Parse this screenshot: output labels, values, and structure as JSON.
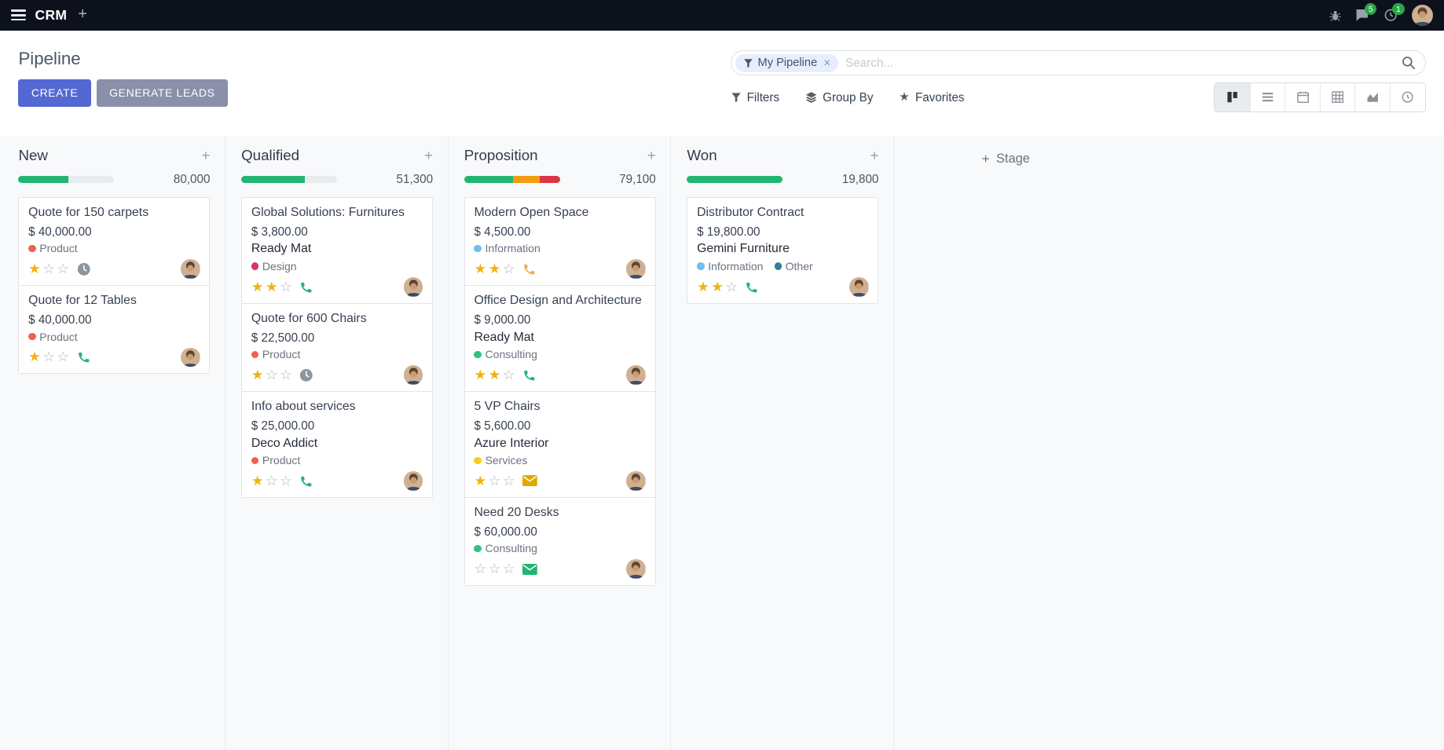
{
  "navbar": {
    "app_name": "CRM",
    "messages_badge": "5",
    "activities_badge": "1"
  },
  "control_panel": {
    "title": "Pipeline",
    "buttons": {
      "create": "CREATE",
      "generate_leads": "GENERATE LEADS"
    },
    "search": {
      "facet_label": "My Pipeline",
      "facet_remove": "×",
      "placeholder": "Search..."
    },
    "menus": {
      "filters": "Filters",
      "group_by": "Group By",
      "favorites": "Favorites"
    },
    "views": [
      "kanban",
      "list",
      "calendar",
      "pivot",
      "graph",
      "activity"
    ],
    "active_view": "kanban"
  },
  "icons": {
    "plus": "+",
    "star_filled": "★",
    "star_empty": "☆",
    "favorites_star": "★"
  },
  "colors": {
    "primary": "#5468d4",
    "secondary_button": "#8a90a9",
    "success": "#21b573",
    "warning": "#f39c12",
    "danger": "#dc3545",
    "star_filled": "#efb312",
    "star_empty": "#b0b5ba",
    "badge": "#28a745"
  },
  "board": {
    "add_stage_label": "Stage",
    "columns": [
      {
        "title": "New",
        "amount": "80,000",
        "progress": [
          {
            "color": "#21b573",
            "pct": 52
          }
        ],
        "cards": [
          {
            "title": "Quote for 150 carpets",
            "revenue": "$ 40,000.00",
            "partner": "",
            "tags": [
              {
                "label": "Product",
                "color": "#f06050"
              }
            ],
            "stars": 1,
            "activity": {
              "icon": "clock",
              "color": "#8d959d"
            }
          },
          {
            "title": "Quote for 12 Tables",
            "revenue": "$ 40,000.00",
            "partner": "",
            "tags": [
              {
                "label": "Product",
                "color": "#f06050"
              }
            ],
            "stars": 1,
            "activity": {
              "icon": "phone",
              "color": "#21b573"
            }
          }
        ]
      },
      {
        "title": "Qualified",
        "amount": "51,300",
        "progress": [
          {
            "color": "#21b573",
            "pct": 66
          }
        ],
        "cards": [
          {
            "title": "Global Solutions: Furnitures",
            "revenue": "$ 3,800.00",
            "partner": "Ready Mat",
            "tags": [
              {
                "label": "Design",
                "color": "#d6336c"
              }
            ],
            "stars": 2,
            "activity": {
              "icon": "phone",
              "color": "#21b573"
            }
          },
          {
            "title": "Quote for 600 Chairs",
            "revenue": "$ 22,500.00",
            "partner": "",
            "tags": [
              {
                "label": "Product",
                "color": "#f06050"
              }
            ],
            "stars": 1,
            "activity": {
              "icon": "clock",
              "color": "#8d959d"
            }
          },
          {
            "title": "Info about services",
            "revenue": "$ 25,000.00",
            "partner": "Deco Addict",
            "tags": [
              {
                "label": "Product",
                "color": "#f06050"
              }
            ],
            "stars": 1,
            "activity": {
              "icon": "phone",
              "color": "#21b573"
            }
          }
        ]
      },
      {
        "title": "Proposition",
        "amount": "79,100",
        "progress": [
          {
            "color": "#21b573",
            "pct": 51
          },
          {
            "color": "#f39c12",
            "pct": 28
          },
          {
            "color": "#dc3545",
            "pct": 21
          }
        ],
        "cards": [
          {
            "title": "Modern Open Space",
            "revenue": "$ 4,500.00",
            "partner": "",
            "tags": [
              {
                "label": "Information",
                "color": "#6cc1ed"
              }
            ],
            "stars": 2,
            "activity": {
              "icon": "phone",
              "color": "#f0ad4e"
            }
          },
          {
            "title": "Office Design and Architecture",
            "revenue": "$ 9,000.00",
            "partner": "Ready Mat",
            "tags": [
              {
                "label": "Consulting",
                "color": "#30c381"
              }
            ],
            "stars": 2,
            "activity": {
              "icon": "phone",
              "color": "#21b573"
            }
          },
          {
            "title": "5 VP Chairs",
            "revenue": "$ 5,600.00",
            "partner": "Azure Interior",
            "tags": [
              {
                "label": "Services",
                "color": "#f7cd1f"
              }
            ],
            "stars": 1,
            "activity": {
              "icon": "envelope",
              "color": "#e0a800"
            }
          },
          {
            "title": "Need 20 Desks",
            "revenue": "$ 60,000.00",
            "partner": "",
            "tags": [
              {
                "label": "Consulting",
                "color": "#30c381"
              }
            ],
            "stars": 0,
            "activity": {
              "icon": "envelope",
              "color": "#21b573"
            }
          }
        ]
      },
      {
        "title": "Won",
        "amount": "19,800",
        "progress": [
          {
            "color": "#21b573",
            "pct": 100
          }
        ],
        "cards": [
          {
            "title": "Distributor Contract",
            "revenue": "$ 19,800.00",
            "partner": "Gemini Furniture",
            "tags": [
              {
                "label": "Information",
                "color": "#6cc1ed"
              },
              {
                "label": "Other",
                "color": "#2c8397"
              }
            ],
            "stars": 2,
            "activity": {
              "icon": "phone",
              "color": "#21b573"
            }
          }
        ]
      }
    ]
  }
}
